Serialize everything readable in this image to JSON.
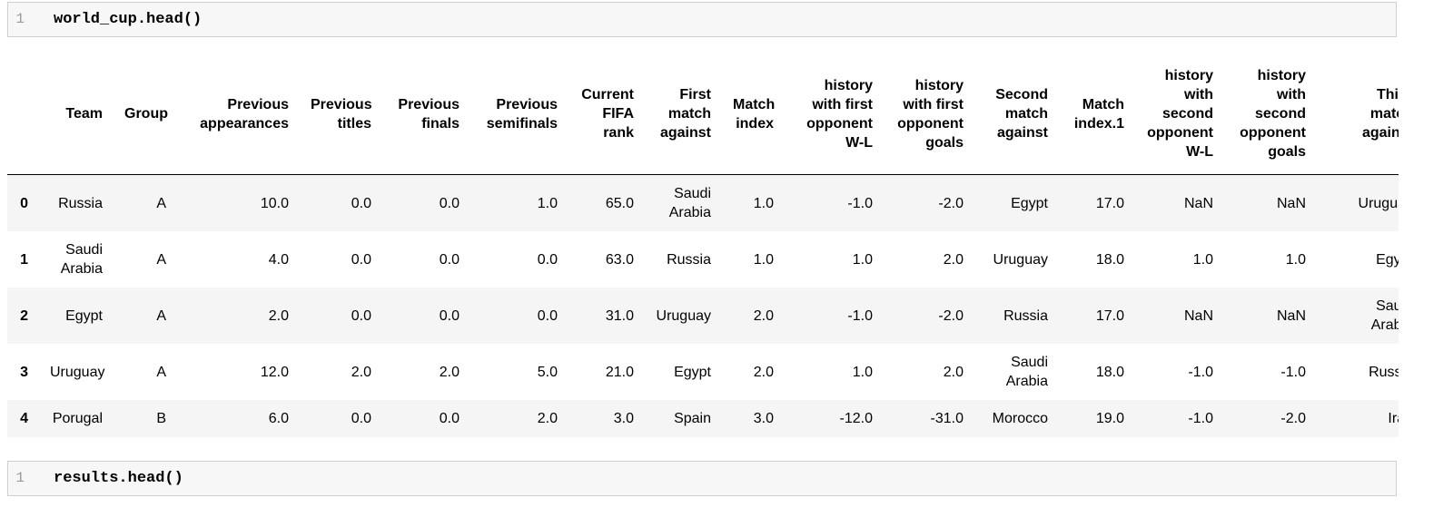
{
  "cell_top": {
    "line_number": "1",
    "code": "world_cup.head()"
  },
  "cell_bottom": {
    "line_number": "1",
    "code": "results.head()"
  },
  "colors": {
    "row_stripe": "#f5f5f5",
    "cell_background": "#f7f7f7",
    "cell_border": "#cfcfcf"
  },
  "dataframe": {
    "index_header": "",
    "columns": [
      "Team",
      "Group",
      "Previous\nappearances",
      "Previous\ntitles",
      "Previous\nfinals",
      "Previous\nsemifinals",
      "Current\nFIFA\nrank",
      "First\nmatch\nagainst",
      "Match\nindex",
      "history\nwith first\nopponent\nW-L",
      "history\nwith first\nopponent\ngoals",
      "Second\nmatch\nagainst",
      "Match\nindex.1",
      "history\nwith\nsecond\nopponent\nW-L",
      "history\nwith\nsecond\nopponent\ngoals",
      "Third\nmatch\nagainst"
    ],
    "rows": [
      {
        "index": "0",
        "cells": [
          "Russia",
          "A",
          "10.0",
          "0.0",
          "0.0",
          "1.0",
          "65.0",
          "Saudi\nArabia",
          "1.0",
          "-1.0",
          "-2.0",
          "Egypt",
          "17.0",
          "NaN",
          "NaN",
          "Uruguay"
        ]
      },
      {
        "index": "1",
        "cells": [
          "Saudi\nArabia",
          "A",
          "4.0",
          "0.0",
          "0.0",
          "0.0",
          "63.0",
          "Russia",
          "1.0",
          "1.0",
          "2.0",
          "Uruguay",
          "18.0",
          "1.0",
          "1.0",
          "Egypt"
        ]
      },
      {
        "index": "2",
        "cells": [
          "Egypt",
          "A",
          "2.0",
          "0.0",
          "0.0",
          "0.0",
          "31.0",
          "Uruguay",
          "2.0",
          "-1.0",
          "-2.0",
          "Russia",
          "17.0",
          "NaN",
          "NaN",
          "Saudi\nArabia"
        ]
      },
      {
        "index": "3",
        "cells": [
          "Uruguay",
          "A",
          "12.0",
          "2.0",
          "2.0",
          "5.0",
          "21.0",
          "Egypt",
          "2.0",
          "1.0",
          "2.0",
          "Saudi\nArabia",
          "18.0",
          "-1.0",
          "-1.0",
          "Russia"
        ]
      },
      {
        "index": "4",
        "cells": [
          "Porugal",
          "B",
          "6.0",
          "0.0",
          "0.0",
          "2.0",
          "3.0",
          "Spain",
          "3.0",
          "-12.0",
          "-31.0",
          "Morocco",
          "19.0",
          "-1.0",
          "-2.0",
          "Iran"
        ]
      }
    ]
  }
}
